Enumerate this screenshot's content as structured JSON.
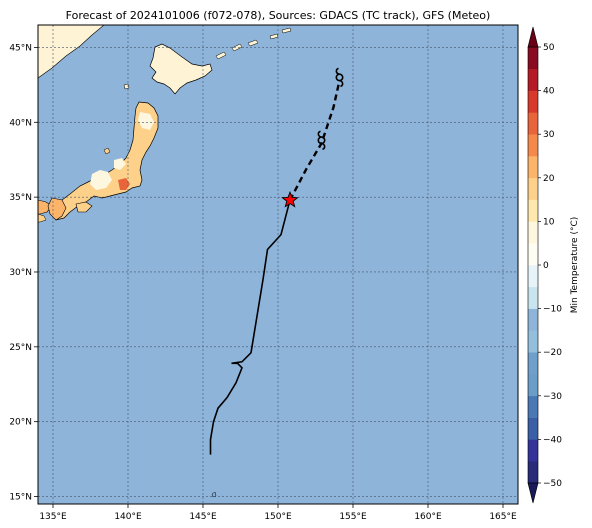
{
  "title": "Forecast of 2024101006 (f072-078), Sources: GDACS (TC track), GFS (Meteo)",
  "map": {
    "lon_range": [
      134,
      166
    ],
    "lat_range": [
      14.5,
      46.5
    ],
    "lon_ticks": [
      {
        "value": 135,
        "label": "135°E"
      },
      {
        "value": 140,
        "label": "140°E"
      },
      {
        "value": 145,
        "label": "145°E"
      },
      {
        "value": 150,
        "label": "150°E"
      },
      {
        "value": 155,
        "label": "155°E"
      },
      {
        "value": 160,
        "label": "160°E"
      },
      {
        "value": 165,
        "label": "165°E"
      }
    ],
    "lat_ticks": [
      {
        "value": 15,
        "label": "15°N"
      },
      {
        "value": 20,
        "label": "20°N"
      },
      {
        "value": 25,
        "label": "25°N"
      },
      {
        "value": 30,
        "label": "30°N"
      },
      {
        "value": 35,
        "label": "35°N"
      },
      {
        "value": 40,
        "label": "40°N"
      },
      {
        "value": 45,
        "label": "45°N"
      }
    ],
    "grid": true,
    "ocean_color": "#8fb4da"
  },
  "track": {
    "observed": [
      [
        145.5,
        17.8
      ],
      [
        145.5,
        18.8
      ],
      [
        145.7,
        20.0
      ],
      [
        146.0,
        20.9
      ],
      [
        146.6,
        21.6
      ],
      [
        147.2,
        22.6
      ],
      [
        147.6,
        23.6
      ],
      [
        147.3,
        23.9
      ],
      [
        146.9,
        23.9
      ],
      [
        147.6,
        24.0
      ],
      [
        148.2,
        24.6
      ],
      [
        149.0,
        29.5
      ],
      [
        149.3,
        31.5
      ],
      [
        150.2,
        32.5
      ],
      [
        150.8,
        34.8
      ]
    ],
    "forecast": [
      [
        150.8,
        34.8
      ],
      [
        151.9,
        36.9
      ],
      [
        152.9,
        38.6
      ],
      [
        153.7,
        41.0
      ],
      [
        154.1,
        42.8
      ]
    ],
    "current_position": [
      150.8,
      34.8
    ],
    "cyclone_symbols": [
      [
        152.9,
        38.8
      ],
      [
        154.1,
        43.0
      ]
    ]
  },
  "colorbar": {
    "label": "Min Temperature (°C)",
    "min": -50,
    "max": 50,
    "tick_values": [
      -50,
      -40,
      -30,
      -20,
      -10,
      0,
      10,
      20,
      30,
      40,
      50
    ],
    "tick_labels": [
      "−50",
      "−40",
      "−30",
      "−20",
      "−10",
      "0",
      "10",
      "20",
      "30",
      "40",
      "50"
    ],
    "levels": [
      {
        "from": -50,
        "to": -45,
        "color": "#2a2a7a"
      },
      {
        "from": -45,
        "to": -40,
        "color": "#33339a"
      },
      {
        "from": -40,
        "to": -35,
        "color": "#3a5fa6"
      },
      {
        "from": -35,
        "to": -30,
        "color": "#4a78b4"
      },
      {
        "from": -30,
        "to": -25,
        "color": "#6a9ec8"
      },
      {
        "from": -25,
        "to": -20,
        "color": "#6f9fcb"
      },
      {
        "from": -20,
        "to": -15,
        "color": "#93bfdc"
      },
      {
        "from": -15,
        "to": -10,
        "color": "#8fb4da"
      },
      {
        "from": -10,
        "to": -5,
        "color": "#c8e4ef"
      },
      {
        "from": -5,
        "to": 0,
        "color": "#e6f3f8"
      },
      {
        "from": 0,
        "to": 5,
        "color": "#fdfdf4"
      },
      {
        "from": 5,
        "to": 10,
        "color": "#fef7df"
      },
      {
        "from": 10,
        "to": 15,
        "color": "#fee8ad"
      },
      {
        "from": 15,
        "to": 20,
        "color": "#fdd18a"
      },
      {
        "from": 20,
        "to": 25,
        "color": "#fcb36a"
      },
      {
        "from": 25,
        "to": 30,
        "color": "#f5894c"
      },
      {
        "from": 30,
        "to": 35,
        "color": "#e8653b"
      },
      {
        "from": 35,
        "to": 40,
        "color": "#d73a2c"
      },
      {
        "from": 40,
        "to": 45,
        "color": "#b51a27"
      },
      {
        "from": 45,
        "to": 50,
        "color": "#8a0a22"
      }
    ],
    "under_color": "#1a1a5a",
    "over_color": "#6a0018"
  }
}
